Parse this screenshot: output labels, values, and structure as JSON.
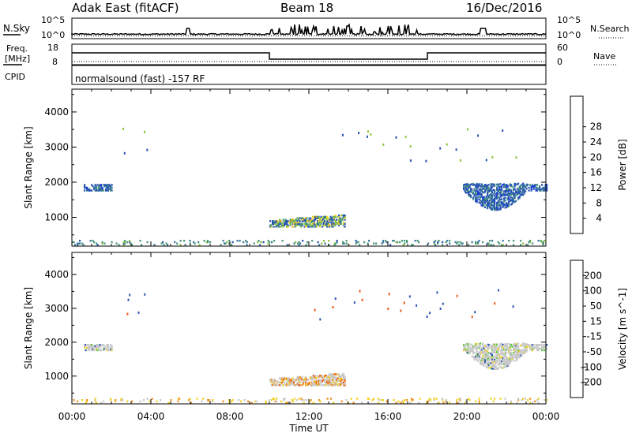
{
  "header": {
    "station": "Adak East (fitACF)",
    "beam": "Beam 18",
    "date": "16/Dec/2016"
  },
  "strip_labels": {
    "nsky": "N.Sky",
    "nsky_ticks": [
      "10^5",
      "10^0"
    ],
    "nsearch": "N.Search",
    "nsearch_ticks": [
      "10^5",
      "10^0"
    ],
    "freq_line1": "Freq.",
    "freq_line2": "[MHz]",
    "freq_ticks": [
      "18",
      "8"
    ],
    "nave": "Nave",
    "nave_ticks": [
      "60",
      "0"
    ],
    "cpid": "CPID",
    "cpid_text": "normalsound (fast) -157 RF"
  },
  "chart_data": [
    {
      "type": "heatmap",
      "panel": "power",
      "ylabel": "Slant Range [km]",
      "yticks": [
        1000,
        2000,
        3000,
        4000
      ],
      "ylim": [
        180,
        4650
      ],
      "xlabel": "",
      "xticks": [
        "00:00",
        "04:00",
        "08:00",
        "12:00",
        "16:00",
        "20:00",
        "00:00"
      ],
      "xlim_hours": [
        0,
        24
      ],
      "colorbar": {
        "label": "Power [dB]",
        "ticks": [
          "4",
          "8",
          "12",
          "16",
          "20",
          "24",
          "28"
        ],
        "colors": [
          "#1432dc",
          "#2a54b4",
          "#3c7a9c",
          "#4a9a78",
          "#8ec43c",
          "#f0d824",
          "#f0a01e",
          "#ec6414",
          "#e02814"
        ]
      },
      "regions": [
        {
          "name": "early",
          "t": [
            0.6,
            2.0
          ],
          "r": [
            1750,
            1950
          ],
          "level": 2
        },
        {
          "name": "midday",
          "t": [
            10.0,
            13.8
          ],
          "r": [
            720,
            1080
          ],
          "level": 4
        },
        {
          "name": "evening",
          "t": [
            19.8,
            24.0
          ],
          "r": [
            1250,
            1950
          ],
          "level": 2
        },
        {
          "name": "near-range",
          "t": [
            0.0,
            24.0
          ],
          "r": [
            200,
            360
          ],
          "level": 3
        }
      ]
    },
    {
      "type": "heatmap",
      "panel": "velocity",
      "ylabel": "Slant Range [km]",
      "yticks": [
        1000,
        2000,
        3000,
        4000
      ],
      "ylim": [
        180,
        4650
      ],
      "xlabel": "Time UT",
      "xticks": [
        "00:00",
        "04:00",
        "08:00",
        "12:00",
        "16:00",
        "20:00",
        "00:00"
      ],
      "xlim_hours": [
        0,
        24
      ],
      "colorbar": {
        "label": "Velocity [m s^-1]",
        "ticks": [
          "200",
          "100",
          "50",
          "15",
          "-15",
          "-50",
          "-100",
          "-200"
        ],
        "colors": [
          "#1432dc",
          "#2a58b0",
          "#3c8c6c",
          "#64c83c",
          "#c8c8c8",
          "#f0d020",
          "#f09020",
          "#ec5814",
          "#e01414"
        ]
      },
      "regions": [
        {
          "name": "early",
          "t": [
            0.6,
            2.0
          ],
          "r": [
            1750,
            1950
          ],
          "level": "ground"
        },
        {
          "name": "midday",
          "t": [
            10.0,
            13.8
          ],
          "r": [
            720,
            1080
          ],
          "level": "receding"
        },
        {
          "name": "evening",
          "t": [
            19.8,
            24.0
          ],
          "r": [
            1250,
            1950
          ],
          "level": "ground"
        },
        {
          "name": "near-range",
          "t": [
            0.0,
            24.0
          ],
          "r": [
            200,
            360
          ],
          "level": "ground"
        }
      ]
    }
  ]
}
